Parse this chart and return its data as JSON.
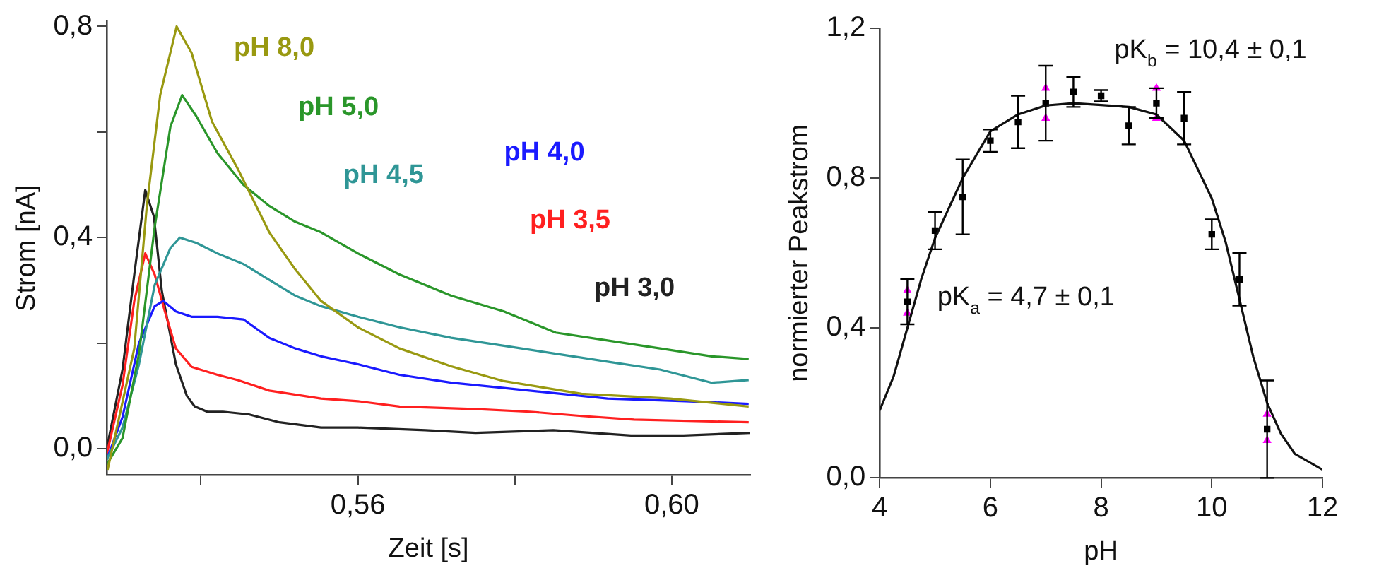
{
  "chart_data": [
    {
      "type": "line",
      "xlabel": "Zeit [s]",
      "ylabel": "Strom [nA]",
      "xlim": [
        0.528,
        0.61
      ],
      "ylim": [
        -0.05,
        0.81
      ],
      "xticks": [
        {
          "value": 0.54,
          "label": null
        },
        {
          "value": 0.56,
          "label": "0,56"
        },
        {
          "value": 0.58,
          "label": null
        },
        {
          "value": 0.6,
          "label": "0,60"
        }
      ],
      "yticks": [
        {
          "value": 0,
          "label": "0,0"
        },
        {
          "value": 0.2,
          "label": null
        },
        {
          "value": 0.4,
          "label": "0,4"
        },
        {
          "value": 0.6,
          "label": null
        },
        {
          "value": 0.8,
          "label": "0,8"
        }
      ],
      "grid": false,
      "legend": false,
      "marker": "none",
      "series": [
        {
          "name": "pH 8,0",
          "color": "#999911",
          "x": [
            0.5281,
            0.5315,
            0.5331,
            0.5348,
            0.5369,
            0.5388,
            0.5414,
            0.5447,
            0.5487,
            0.552,
            0.5553,
            0.56,
            0.5653,
            0.5719,
            0.5786,
            0.5885,
            0.5998,
            0.6098
          ],
          "values": [
            -0.04,
            0.19,
            0.46,
            0.67,
            0.8,
            0.75,
            0.62,
            0.53,
            0.41,
            0.34,
            0.28,
            0.23,
            0.19,
            0.156,
            0.128,
            0.104,
            0.095,
            0.08
          ]
        },
        {
          "name": "pH 5,0",
          "color": "#2a962a",
          "x": [
            0.528,
            0.53,
            0.5321,
            0.5341,
            0.5361,
            0.5376,
            0.5394,
            0.5421,
            0.5454,
            0.5487,
            0.552,
            0.5553,
            0.56,
            0.5653,
            0.5719,
            0.5786,
            0.5852,
            0.5918,
            0.5985,
            0.6051,
            0.6098
          ],
          "values": [
            -0.03,
            0.02,
            0.18,
            0.42,
            0.61,
            0.67,
            0.63,
            0.56,
            0.5,
            0.46,
            0.43,
            0.41,
            0.37,
            0.33,
            0.29,
            0.26,
            0.22,
            0.205,
            0.19,
            0.175,
            0.17
          ]
        },
        {
          "name": "pH 4,5",
          "color": "#2f9696",
          "x": [
            0.528,
            0.53,
            0.5321,
            0.5341,
            0.5361,
            0.5373,
            0.5394,
            0.5421,
            0.5454,
            0.5487,
            0.552,
            0.5553,
            0.56,
            0.5653,
            0.5719,
            0.5786,
            0.5852,
            0.5918,
            0.5985,
            0.6051,
            0.6098
          ],
          "values": [
            -0.02,
            0.04,
            0.16,
            0.31,
            0.38,
            0.4,
            0.39,
            0.37,
            0.35,
            0.32,
            0.29,
            0.27,
            0.25,
            0.23,
            0.21,
            0.195,
            0.18,
            0.165,
            0.15,
            0.125,
            0.13
          ]
        },
        {
          "name": "pH 4,0",
          "color": "#1a1aff",
          "x": [
            0.528,
            0.53,
            0.5321,
            0.5341,
            0.5352,
            0.5368,
            0.5388,
            0.5421,
            0.5454,
            0.5487,
            0.552,
            0.5553,
            0.56,
            0.5653,
            0.5719,
            0.5786,
            0.5852,
            0.5918,
            0.6018,
            0.6098
          ],
          "values": [
            -0.02,
            0.06,
            0.2,
            0.27,
            0.28,
            0.26,
            0.25,
            0.25,
            0.245,
            0.21,
            0.19,
            0.175,
            0.16,
            0.14,
            0.125,
            0.115,
            0.105,
            0.095,
            0.09,
            0.085
          ]
        },
        {
          "name": "pH 3,5",
          "color": "#ff2020",
          "x": [
            0.528,
            0.53,
            0.5315,
            0.5329,
            0.5341,
            0.5354,
            0.5368,
            0.5388,
            0.5421,
            0.5447,
            0.5487,
            0.5553,
            0.56,
            0.5653,
            0.5753,
            0.5819,
            0.5885,
            0.5952,
            0.6098
          ],
          "values": [
            -0.01,
            0.12,
            0.28,
            0.37,
            0.33,
            0.26,
            0.19,
            0.155,
            0.14,
            0.13,
            0.11,
            0.095,
            0.09,
            0.08,
            0.075,
            0.07,
            0.062,
            0.055,
            0.05
          ]
        },
        {
          "name": "pH 3,0",
          "color": "#222222",
          "x": [
            0.528,
            0.53,
            0.5315,
            0.5329,
            0.534,
            0.535,
            0.5368,
            0.5382,
            0.5392,
            0.5408,
            0.5428,
            0.5461,
            0.55,
            0.5553,
            0.56,
            0.5686,
            0.575,
            0.5849,
            0.5948,
            0.6015,
            0.61
          ],
          "values": [
            0,
            0.15,
            0.33,
            0.49,
            0.44,
            0.3,
            0.16,
            0.1,
            0.08,
            0.07,
            0.07,
            0.065,
            0.05,
            0.04,
            0.04,
            0.035,
            0.03,
            0.035,
            0.025,
            0.025,
            0.03
          ]
        }
      ]
    },
    {
      "type": "scatter",
      "xlabel": "pH",
      "ylabel": "normierter Peakstrom",
      "xlim": [
        4,
        12
      ],
      "ylim": [
        0,
        1.2
      ],
      "xticks": [
        4,
        6,
        8,
        10,
        12
      ],
      "yticks": [
        {
          "value": 0,
          "label": "0,0"
        },
        {
          "value": 0.4,
          "label": "0,4"
        },
        {
          "value": 0.8,
          "label": "0,8"
        },
        {
          "value": 1.2,
          "label": "1,2"
        }
      ],
      "grid": false,
      "legend": false,
      "annotations": [
        "pK$_{b}$ = 10,4 ± 0,1",
        "pK$_{a}$ = 4,7 ± 0,1"
      ],
      "series": [
        {
          "type": "line",
          "color": "#111111",
          "marker": "none",
          "x": [
            4,
            4.25,
            4.5,
            4.75,
            5,
            5.5,
            6,
            6.5,
            7,
            7.5,
            8,
            8.5,
            9,
            9.5,
            10,
            10.25,
            10.5,
            10.75,
            11,
            11.25,
            11.5,
            12
          ],
          "values": [
            0.18,
            0.27,
            0.4,
            0.53,
            0.64,
            0.8,
            0.925,
            0.97,
            0.994,
            1.0,
            0.995,
            0.99,
            0.97,
            0.9,
            0.746,
            0.63,
            0.477,
            0.323,
            0.2,
            0.118,
            0.064,
            0.022
          ]
        },
        {
          "color": "#000000",
          "marker": "square",
          "x": [
            4.5,
            5,
            5.5,
            6,
            6.5,
            7,
            7.5,
            8,
            8.5,
            9,
            9.5,
            10,
            10.5,
            11
          ],
          "values": [
            0.47,
            0.66,
            0.75,
            0.9,
            0.95,
            1.0,
            1.03,
            1.02,
            0.94,
            1.0,
            0.96,
            0.65,
            0.53,
            0.13
          ],
          "errors": [
            0.06,
            0.05,
            0.1,
            0.03,
            0.07,
            0.1,
            0.04,
            0.015,
            0.05,
            0.04,
            0.07,
            0.04,
            0.07,
            0.13
          ]
        },
        {
          "color": "#ff00ff",
          "marker": "triangle",
          "x": [
            4.5,
            4.5,
            7,
            7,
            9,
            9,
            11,
            11
          ],
          "values": [
            0.44,
            0.5,
            0.96,
            1.04,
            0.96,
            1.04,
            0.1,
            0.17
          ]
        }
      ]
    }
  ]
}
